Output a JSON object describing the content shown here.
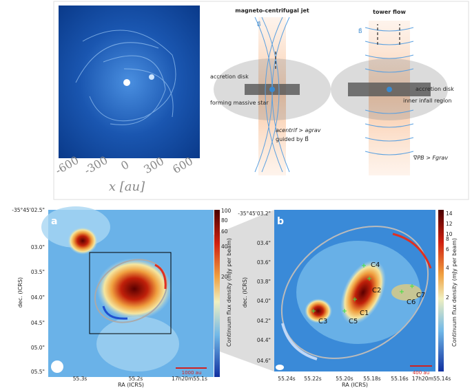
{
  "top": {
    "simulation": {
      "x_ticks": [
        "-600",
        "-300",
        "0",
        "300",
        "600"
      ],
      "x_label": "x [au]"
    },
    "diagram": {
      "jet_title": "magneto-centrifugal jet",
      "tower_title": "tower flow",
      "b_field_left": "B⃗",
      "b_field_right": "B⃗",
      "accretion_disk_left": "accretion disk",
      "forming_star": "forming massive star",
      "acceleration": "acentrif > agrav",
      "guided": "guided by B⃗",
      "accretion_disk_right": "accretion disk",
      "inner_infall": "inner infall region",
      "pressure": "∇PB > Fgrav"
    }
  },
  "panel_a": {
    "label": "a",
    "y_ticks": [
      "-35°45'02.5\"",
      "03.0\"",
      "03.5\"",
      "04.0\"",
      "04.5\"",
      "05.0\"",
      "05.5\""
    ],
    "x_ticks": [
      "55.3s",
      "55.2s",
      "17h20m55.1s"
    ],
    "y_label": "dec. (ICRS)",
    "x_label": "RA (ICRS)",
    "colorbar_ticks": [
      "100",
      "80",
      "60",
      "40",
      "20"
    ],
    "colorbar_label": "Continuum flux density (mJy per beam)",
    "scale_bar": "1000 au"
  },
  "panel_b": {
    "label": "b",
    "y_ticks": [
      "-35°45'03.2\"",
      "03.4\"",
      "03.6\"",
      "03.8\"",
      "04.0\"",
      "04.2\"",
      "04.4\"",
      "04.6\""
    ],
    "x_ticks": [
      "55.24s",
      "55.22s",
      "55.20s",
      "55.18s",
      "55.16s",
      "17h20m55.14s"
    ],
    "y_label": "dec. (ICRS)",
    "x_label": "RA (ICRS)",
    "colorbar_ticks": [
      "14",
      "12",
      "10",
      "8",
      "6",
      "4",
      "2"
    ],
    "colorbar_label": "Continuum flux density (mJy per beam)",
    "scale_bar": "400 au",
    "clumps": [
      "C1",
      "C2",
      "C3",
      "C4",
      "C5",
      "C6",
      "C7"
    ]
  }
}
